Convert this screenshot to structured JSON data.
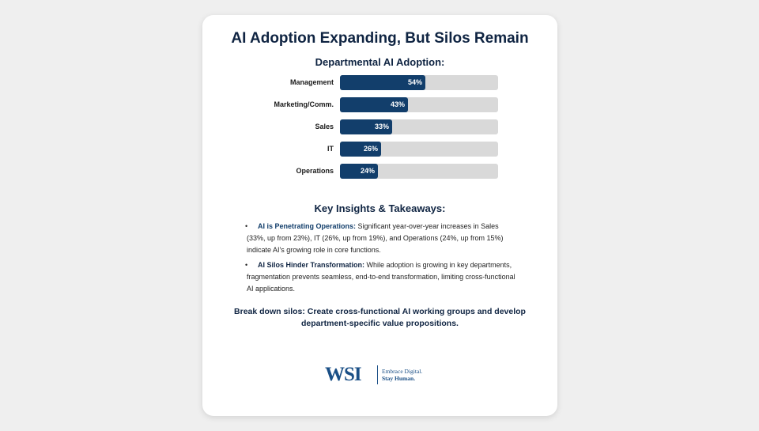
{
  "title": "AI Adoption Expanding, But Silos Remain",
  "chart_data": {
    "type": "bar",
    "orientation": "horizontal",
    "title": "Departmental AI Adoption:",
    "categories": [
      "Management",
      "Marketing/Comm.",
      "Sales",
      "IT",
      "Operations"
    ],
    "values": [
      54,
      43,
      33,
      26,
      24
    ],
    "value_labels": [
      "54%",
      "43%",
      "33%",
      "26%",
      "24%"
    ],
    "xlim": [
      0,
      100
    ],
    "grid": false,
    "colors": {
      "fill": "#123e6b",
      "track": "#d9d9d9"
    }
  },
  "insights": {
    "title": "Key Insights & Takeaways:",
    "bullet": "•",
    "items": [
      {
        "head": "AI is Penetrating Operations:",
        "body": " Significant year-over-year increases in Sales (33%, up from 23%), IT (26%, up from 19%), and Operations (24%, up from 15%) indicate AI's growing role in core functions."
      },
      {
        "head": "AI Silos Hinder Transformation:",
        "body": " While adoption is growing in key departments, fragmentation prevents seamless, end-to-end transformation, limiting cross-functional AI applications."
      }
    ]
  },
  "cta": "Break down silos: Create cross-functional AI working groups and develop department-specific value propositions.",
  "logo": {
    "mark": "WSI",
    "tagline1": "Embrace Digital.",
    "tagline2": "Stay Human."
  }
}
